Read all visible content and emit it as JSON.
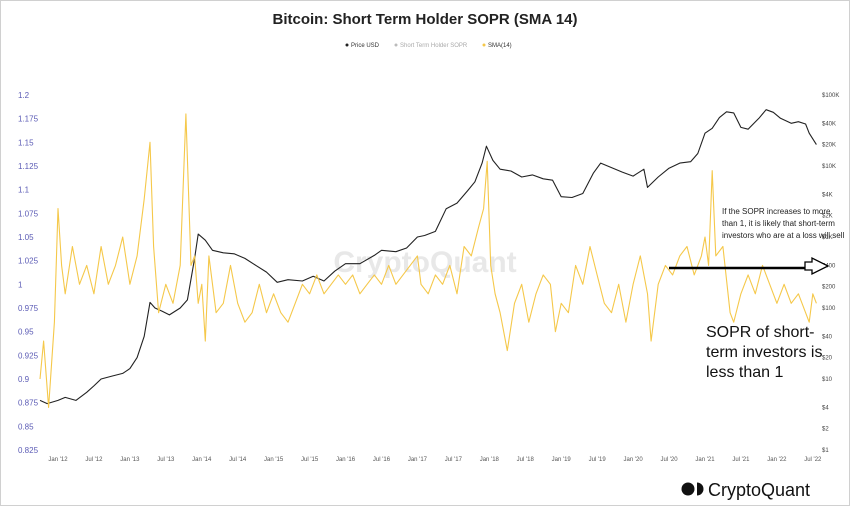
{
  "chart_data": {
    "type": "line",
    "title": "Bitcoin: Short Term Holder SOPR (SMA 14)",
    "legend": [
      "Price USD",
      "Short Term Holder SOPR",
      "SMA(14)"
    ],
    "legend_placement": "top-center",
    "grid": false,
    "x_ticks": [
      "Jan '12",
      "Jul '12",
      "Jan '13",
      "Jul '13",
      "Jan '14",
      "Jul '14",
      "Jan '15",
      "Jul '15",
      "Jan '16",
      "Jul '16",
      "Jan '17",
      "Jul '17",
      "Jan '18",
      "Jul '18",
      "Jan '19",
      "Jul '19",
      "Jan '20",
      "Jul '20",
      "Jan '21",
      "Jul '21",
      "Jan '22",
      "Jul '22"
    ],
    "y_left_ticks": [
      "1.2",
      "1.175",
      "1.15",
      "1.125",
      "1.1",
      "1.075",
      "1.05",
      "1.025",
      "1",
      "0.975",
      "0.95",
      "0.925",
      "0.9",
      "0.875",
      "0.85",
      "0.825"
    ],
    "y_left_range": [
      0.825,
      1.2
    ],
    "y_right_ticks": [
      "$100K",
      "$40K",
      "$20K",
      "$10K",
      "$4K",
      "$2K",
      "$1K",
      "$400",
      "$200",
      "$100",
      "$40",
      "$20",
      "$10",
      "$4",
      "$2",
      "$1"
    ],
    "y_right_scale": "log",
    "series": [
      {
        "name": "Price USD",
        "color": "#222222",
        "x": [
          2011.75,
          2011.85,
          2012.0,
          2012.1,
          2012.25,
          2012.4,
          2012.5,
          2012.6,
          2012.75,
          2012.9,
          2013.0,
          2013.1,
          2013.2,
          2013.28,
          2013.35,
          2013.45,
          2013.55,
          2013.7,
          2013.8,
          2013.9,
          2013.95,
          2014.05,
          2014.15,
          2014.3,
          2014.45,
          2014.6,
          2014.75,
          2014.9,
          2015.05,
          2015.2,
          2015.4,
          2015.55,
          2015.7,
          2015.85,
          2016.0,
          2016.2,
          2016.4,
          2016.5,
          2016.7,
          2016.85,
          2017.0,
          2017.1,
          2017.25,
          2017.4,
          2017.55,
          2017.7,
          2017.8,
          2017.9,
          2017.96,
          2018.05,
          2018.15,
          2018.3,
          2018.45,
          2018.6,
          2018.75,
          2018.88,
          2019.0,
          2019.15,
          2019.3,
          2019.45,
          2019.55,
          2019.7,
          2019.85,
          2020.0,
          2020.15,
          2020.2,
          2020.35,
          2020.5,
          2020.65,
          2020.8,
          2020.9,
          2021.0,
          2021.1,
          2021.2,
          2021.3,
          2021.4,
          2021.5,
          2021.6,
          2021.75,
          2021.85,
          2021.95,
          2022.05,
          2022.2,
          2022.3,
          2022.4,
          2022.45,
          2022.55
        ],
        "values": [
          5,
          4.5,
          5,
          5.5,
          5,
          6.5,
          8,
          10,
          11,
          12,
          14,
          20,
          40,
          120,
          100,
          90,
          80,
          100,
          130,
          500,
          1100,
          900,
          650,
          600,
          580,
          500,
          400,
          320,
          230,
          250,
          240,
          280,
          240,
          330,
          420,
          420,
          550,
          650,
          620,
          700,
          1000,
          1050,
          1200,
          2500,
          3000,
          4500,
          6000,
          11000,
          19000,
          12000,
          9000,
          8500,
          7000,
          7500,
          6600,
          6300,
          3700,
          3600,
          4100,
          8000,
          11000,
          9500,
          8200,
          7200,
          9000,
          5000,
          7000,
          9300,
          11000,
          11500,
          15000,
          29000,
          34000,
          48000,
          58000,
          56000,
          35000,
          33000,
          47000,
          62000,
          57000,
          47000,
          40000,
          42000,
          39000,
          29000,
          20000
        ]
      },
      {
        "name": "SMA(14)",
        "color": "#f5c84a",
        "x": [
          2011.75,
          2011.8,
          2011.87,
          2011.95,
          2012.0,
          2012.05,
          2012.1,
          2012.2,
          2012.3,
          2012.4,
          2012.5,
          2012.6,
          2012.7,
          2012.8,
          2012.9,
          2013.0,
          2013.1,
          2013.2,
          2013.28,
          2013.33,
          2013.4,
          2013.5,
          2013.6,
          2013.7,
          2013.78,
          2013.85,
          2013.9,
          2013.95,
          2014.0,
          2014.05,
          2014.1,
          2014.2,
          2014.3,
          2014.4,
          2014.5,
          2014.6,
          2014.7,
          2014.8,
          2014.9,
          2015.0,
          2015.1,
          2015.2,
          2015.3,
          2015.4,
          2015.5,
          2015.6,
          2015.7,
          2015.8,
          2015.9,
          2016.0,
          2016.1,
          2016.2,
          2016.3,
          2016.4,
          2016.5,
          2016.6,
          2016.7,
          2016.8,
          2016.9,
          2017.0,
          2017.05,
          2017.15,
          2017.25,
          2017.35,
          2017.45,
          2017.55,
          2017.65,
          2017.75,
          2017.85,
          2017.92,
          2017.97,
          2018.02,
          2018.08,
          2018.15,
          2018.25,
          2018.35,
          2018.45,
          2018.55,
          2018.65,
          2018.75,
          2018.85,
          2018.92,
          2019.0,
          2019.1,
          2019.2,
          2019.3,
          2019.4,
          2019.5,
          2019.6,
          2019.7,
          2019.8,
          2019.9,
          2020.0,
          2020.1,
          2020.2,
          2020.25,
          2020.35,
          2020.45,
          2020.55,
          2020.65,
          2020.75,
          2020.85,
          2020.95,
          2021.0,
          2021.05,
          2021.1,
          2021.15,
          2021.25,
          2021.35,
          2021.4,
          2021.5,
          2021.6,
          2021.7,
          2021.8,
          2021.9,
          2022.0,
          2022.1,
          2022.2,
          2022.3,
          2022.4,
          2022.45,
          2022.5,
          2022.55
        ],
        "values": [
          0.9,
          0.94,
          0.87,
          0.96,
          1.08,
          1.02,
          0.99,
          1.04,
          1.0,
          1.02,
          0.99,
          1.04,
          1.0,
          1.02,
          1.05,
          1.0,
          1.03,
          1.09,
          1.15,
          1.04,
          0.97,
          1.0,
          0.98,
          1.02,
          1.18,
          1.02,
          1.03,
          0.98,
          1.0,
          0.94,
          1.03,
          0.97,
          0.98,
          1.02,
          0.98,
          0.96,
          0.97,
          1.0,
          0.97,
          0.99,
          0.97,
          0.96,
          0.98,
          1.0,
          0.99,
          1.01,
          0.99,
          1.0,
          1.01,
          1.0,
          1.01,
          0.99,
          1.0,
          1.01,
          1.0,
          1.02,
          1.0,
          1.01,
          1.02,
          1.03,
          1.0,
          0.99,
          1.01,
          1.0,
          1.02,
          0.99,
          1.04,
          1.03,
          1.06,
          1.08,
          1.13,
          1.02,
          0.99,
          0.97,
          0.93,
          0.98,
          1.0,
          0.96,
          0.99,
          1.01,
          1.0,
          0.95,
          0.98,
          0.97,
          1.02,
          1.0,
          1.04,
          1.01,
          0.98,
          0.97,
          1.0,
          0.96,
          1.0,
          1.03,
          0.99,
          0.94,
          1.0,
          1.02,
          1.01,
          1.03,
          1.04,
          1.01,
          1.03,
          1.05,
          1.02,
          1.12,
          1.03,
          1.04,
          0.97,
          0.96,
          0.99,
          1.01,
          0.99,
          1.02,
          1.0,
          0.98,
          1.0,
          0.98,
          0.99,
          0.97,
          0.96,
          0.99,
          0.98
        ]
      }
    ],
    "xlim": [
      2011.75,
      2022.6
    ]
  },
  "annotations": {
    "note_top": [
      "If the SOPR increases to more",
      "than 1, it is likely that short-term",
      "investors who are at a loss will sell"
    ],
    "note_bottom": [
      "SOPR of short-",
      "term investors is",
      "less than 1"
    ],
    "threshold_value": 1
  },
  "watermark": "CryptoQuant",
  "logo": "CryptoQuant"
}
